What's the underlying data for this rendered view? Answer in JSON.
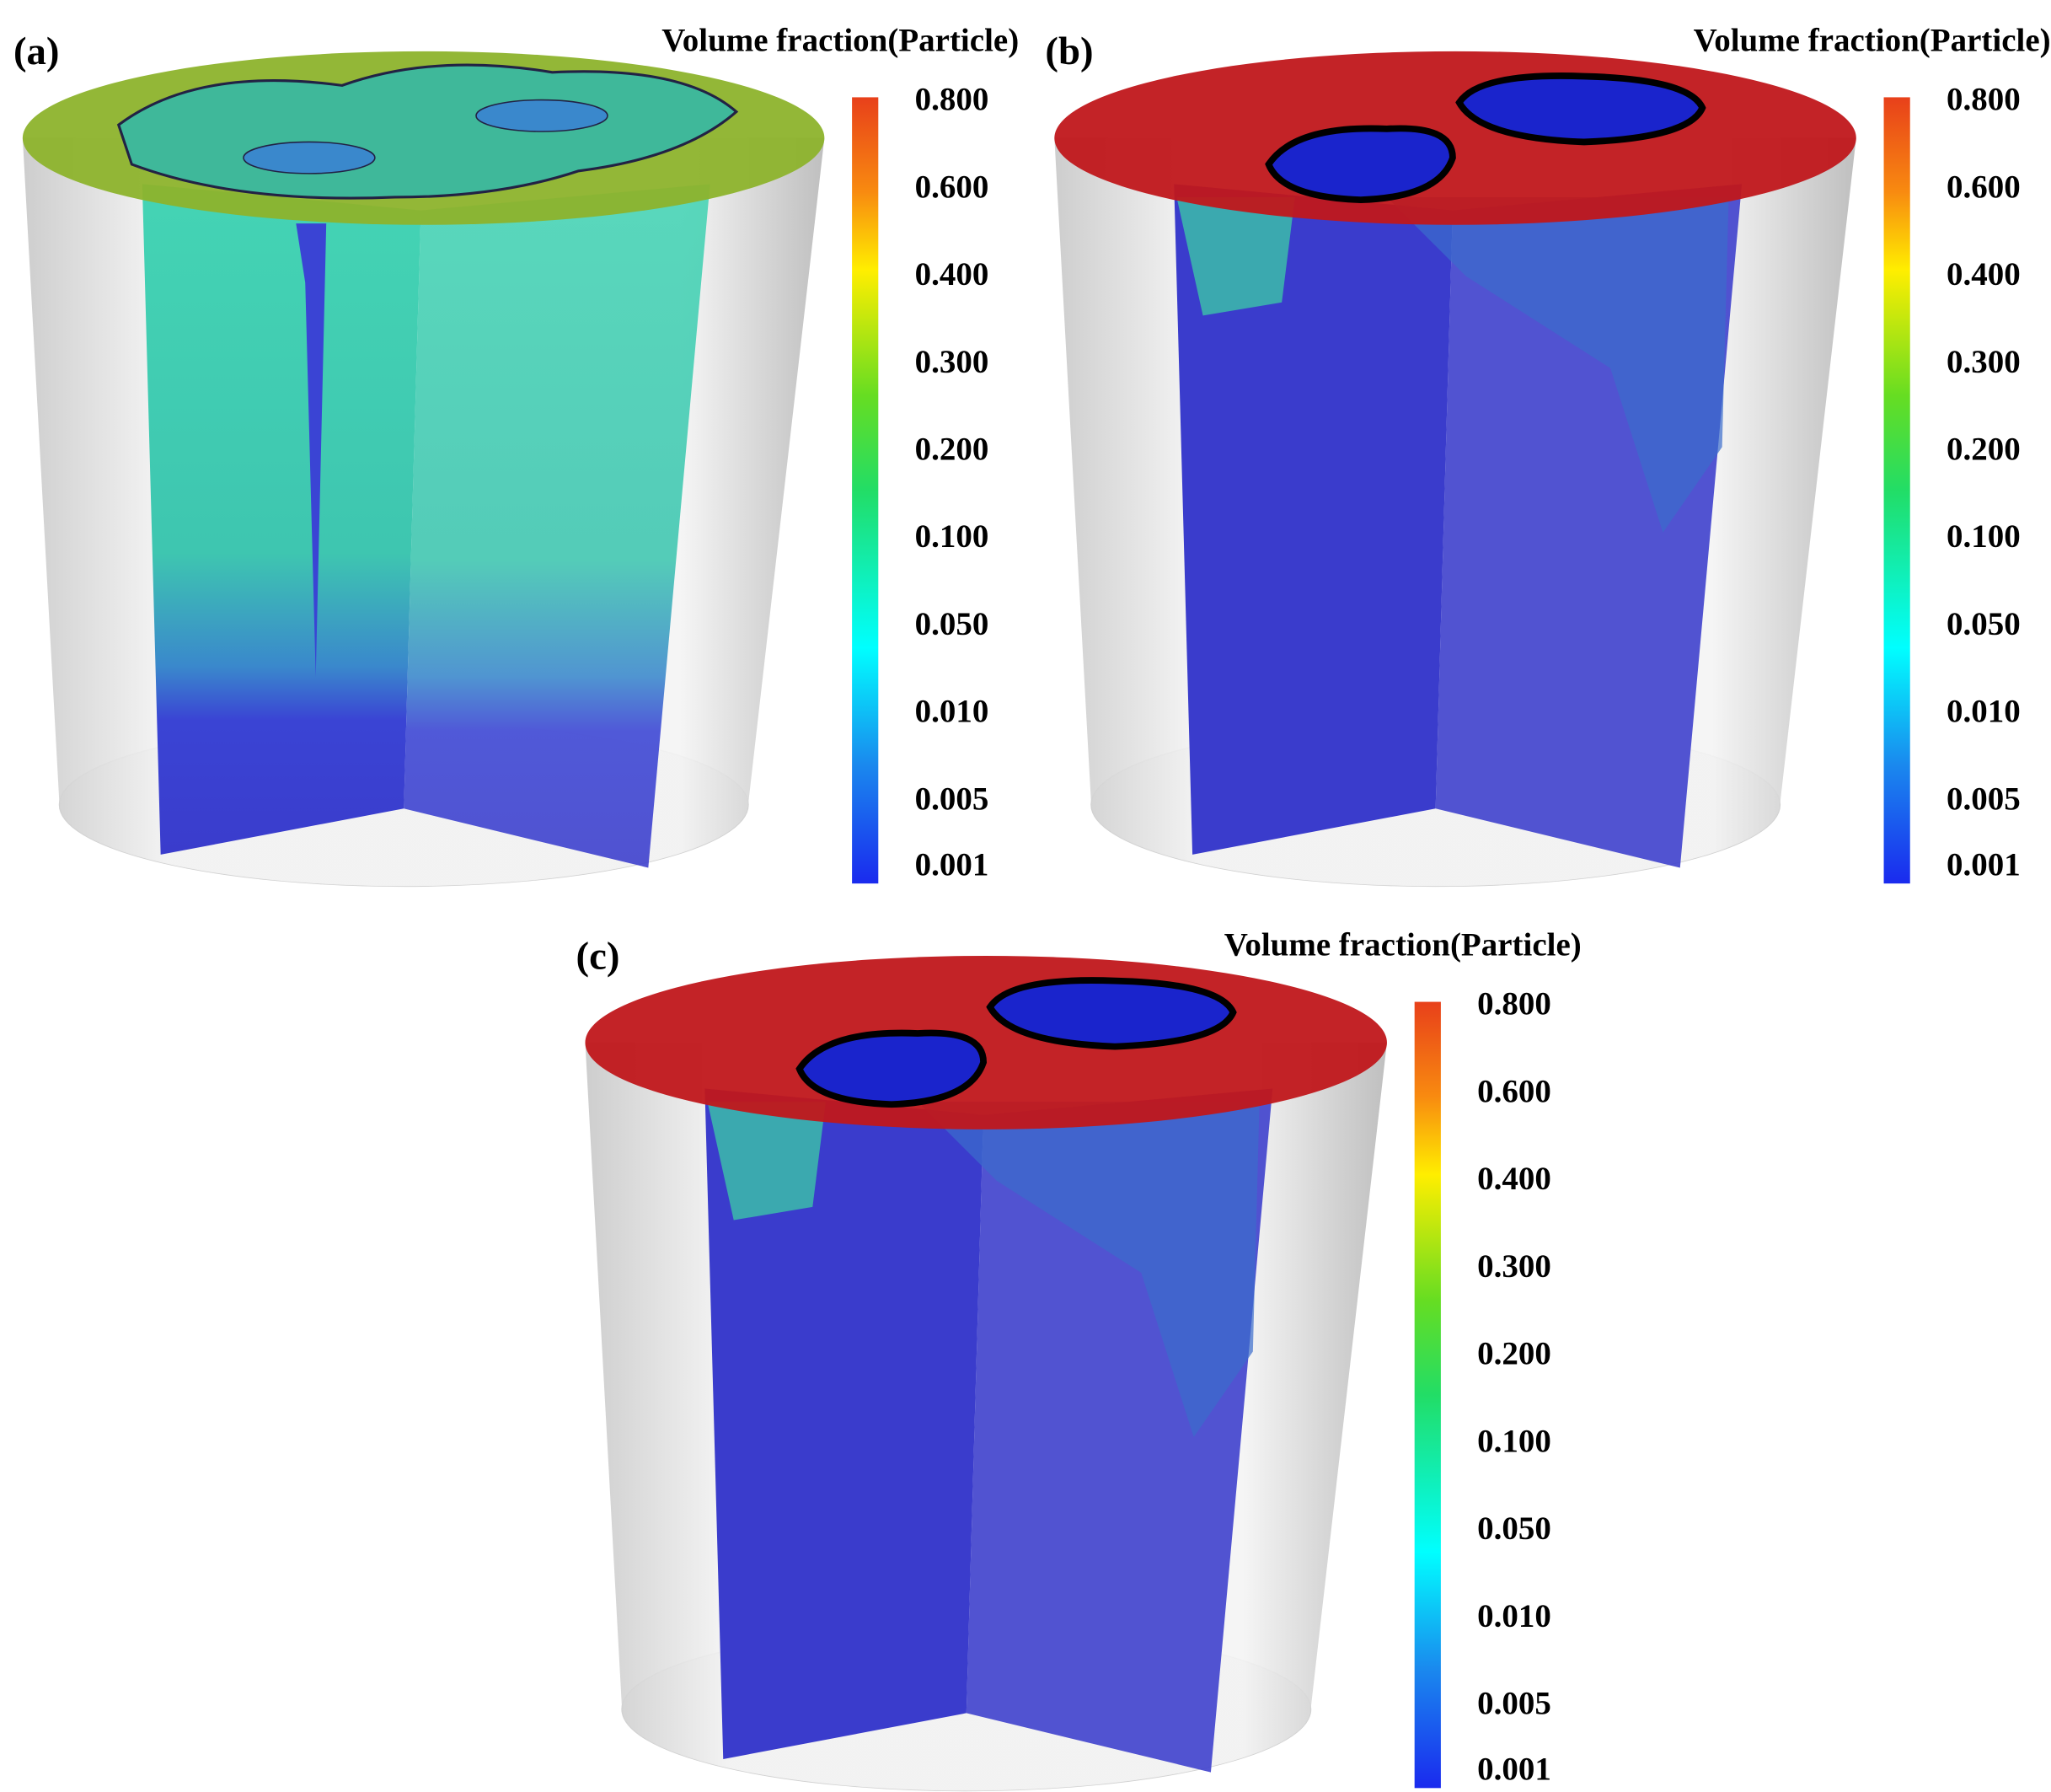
{
  "panels": [
    {
      "label": "(a)",
      "legend_title": "Volume fraction(Particle)",
      "legend_ticks": [
        "0.800",
        "0.600",
        "0.400",
        "0.300",
        "0.200",
        "0.100",
        "0.050",
        "0.010",
        "0.005",
        "0.001"
      ]
    },
    {
      "label": "(b)",
      "legend_title": "Volume fraction(Particle)",
      "legend_ticks": [
        "0.800",
        "0.600",
        "0.400",
        "0.300",
        "0.200",
        "0.100",
        "0.050",
        "0.010",
        "0.005",
        "0.001"
      ]
    },
    {
      "label": "(c)",
      "legend_title": "Volume fraction(Particle)",
      "legend_ticks": [
        "0.800",
        "0.600",
        "0.400",
        "0.300",
        "0.200",
        "0.100",
        "0.050",
        "0.010",
        "0.005",
        "0.001"
      ]
    }
  ]
}
